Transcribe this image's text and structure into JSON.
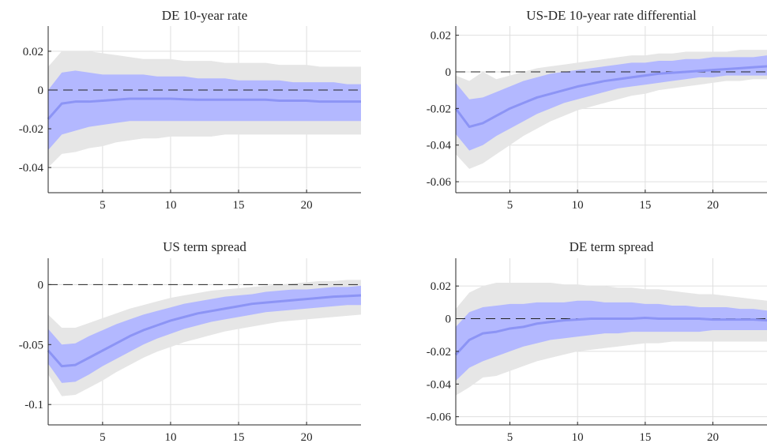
{
  "chart_data": [
    {
      "type": "area",
      "title": "DE 10-year rate",
      "xlim": [
        1,
        24
      ],
      "ylim": [
        -0.053,
        0.033
      ],
      "x_ticks": [
        5,
        10,
        15,
        20
      ],
      "x_tick_labels": [
        "5",
        "10",
        "15",
        "20"
      ],
      "y_ticks": [
        0.02,
        0,
        -0.02,
        -0.04
      ],
      "y_tick_labels": [
        "0.02",
        "0",
        "-0.02",
        "-0.04"
      ],
      "zero_line": true,
      "grid": true,
      "x": [
        1,
        2,
        3,
        4,
        5,
        6,
        7,
        8,
        9,
        10,
        11,
        12,
        13,
        14,
        15,
        16,
        17,
        18,
        19,
        20,
        21,
        22,
        23,
        24
      ],
      "series": [
        {
          "role": "outer-band",
          "color": "#e6e6e6",
          "upper": [
            0.012,
            0.02,
            0.02,
            0.02,
            0.019,
            0.018,
            0.017,
            0.016,
            0.016,
            0.016,
            0.015,
            0.015,
            0.015,
            0.014,
            0.014,
            0.014,
            0.014,
            0.013,
            0.013,
            0.013,
            0.012,
            0.012,
            0.012,
            0.012
          ],
          "lower": [
            -0.04,
            -0.033,
            -0.032,
            -0.03,
            -0.029,
            -0.027,
            -0.026,
            -0.025,
            -0.025,
            -0.024,
            -0.024,
            -0.024,
            -0.024,
            -0.023,
            -0.023,
            -0.023,
            -0.023,
            -0.023,
            -0.023,
            -0.023,
            -0.023,
            -0.023,
            -0.023,
            -0.023
          ]
        },
        {
          "role": "inner-band",
          "color": "#b3b8ff",
          "upper": [
            0.0,
            0.009,
            0.01,
            0.009,
            0.008,
            0.008,
            0.008,
            0.008,
            0.007,
            0.007,
            0.007,
            0.006,
            0.006,
            0.006,
            0.005,
            0.005,
            0.005,
            0.005,
            0.004,
            0.004,
            0.004,
            0.004,
            0.003,
            0.003
          ],
          "lower": [
            -0.031,
            -0.023,
            -0.021,
            -0.019,
            -0.018,
            -0.017,
            -0.016,
            -0.016,
            -0.016,
            -0.016,
            -0.016,
            -0.016,
            -0.016,
            -0.016,
            -0.016,
            -0.016,
            -0.016,
            -0.016,
            -0.016,
            -0.016,
            -0.016,
            -0.016,
            -0.016,
            -0.016
          ]
        },
        {
          "role": "median",
          "color": "#8c94f5",
          "values": [
            -0.015,
            -0.007,
            -0.006,
            -0.006,
            -0.0055,
            -0.005,
            -0.0045,
            -0.0045,
            -0.0045,
            -0.0045,
            -0.0048,
            -0.005,
            -0.005,
            -0.005,
            -0.005,
            -0.005,
            -0.005,
            -0.0055,
            -0.0055,
            -0.0055,
            -0.006,
            -0.006,
            -0.006,
            -0.006
          ]
        }
      ]
    },
    {
      "type": "area",
      "title": "US-DE 10-year rate differential",
      "xlim": [
        1,
        24
      ],
      "ylim": [
        -0.066,
        0.025
      ],
      "x_ticks": [
        5,
        10,
        15,
        20
      ],
      "x_tick_labels": [
        "5",
        "10",
        "15",
        "20"
      ],
      "y_ticks": [
        0.02,
        0,
        -0.02,
        -0.04,
        -0.06
      ],
      "y_tick_labels": [
        "0.02",
        "0",
        "-0.02",
        "-0.04",
        "-0.06"
      ],
      "zero_line": true,
      "grid": true,
      "x": [
        1,
        2,
        3,
        4,
        5,
        6,
        7,
        8,
        9,
        10,
        11,
        12,
        13,
        14,
        15,
        16,
        17,
        18,
        19,
        20,
        21,
        22,
        23,
        24
      ],
      "series": [
        {
          "role": "outer-band",
          "color": "#e6e6e6",
          "upper": [
            -0.002,
            -0.005,
            0.0,
            -0.004,
            -0.002,
            0.0,
            0.002,
            0.003,
            0.004,
            0.005,
            0.006,
            0.007,
            0.008,
            0.009,
            0.009,
            0.01,
            0.01,
            0.011,
            0.011,
            0.011,
            0.011,
            0.012,
            0.012,
            0.012
          ],
          "lower": [
            -0.045,
            -0.053,
            -0.05,
            -0.045,
            -0.04,
            -0.035,
            -0.031,
            -0.027,
            -0.024,
            -0.021,
            -0.019,
            -0.017,
            -0.015,
            -0.013,
            -0.012,
            -0.01,
            -0.009,
            -0.008,
            -0.007,
            -0.006,
            -0.005,
            -0.005,
            -0.004,
            -0.004
          ]
        },
        {
          "role": "inner-band",
          "color": "#b3b8ff",
          "upper": [
            -0.006,
            -0.015,
            -0.014,
            -0.011,
            -0.008,
            -0.005,
            -0.003,
            -0.001,
            0.0,
            0.001,
            0.002,
            0.003,
            0.004,
            0.005,
            0.005,
            0.006,
            0.006,
            0.007,
            0.007,
            0.008,
            0.008,
            0.008,
            0.008,
            0.009
          ],
          "lower": [
            -0.034,
            -0.043,
            -0.04,
            -0.035,
            -0.031,
            -0.027,
            -0.023,
            -0.02,
            -0.017,
            -0.015,
            -0.013,
            -0.011,
            -0.009,
            -0.008,
            -0.007,
            -0.006,
            -0.005,
            -0.004,
            -0.003,
            -0.003,
            -0.002,
            -0.002,
            -0.002,
            -0.002
          ]
        },
        {
          "role": "median",
          "color": "#8c94f5",
          "values": [
            -0.02,
            -0.03,
            -0.028,
            -0.024,
            -0.02,
            -0.017,
            -0.014,
            -0.012,
            -0.01,
            -0.008,
            -0.0065,
            -0.005,
            -0.004,
            -0.003,
            -0.002,
            -0.001,
            -0.0005,
            0.0,
            0.0005,
            0.001,
            0.0015,
            0.002,
            0.0025,
            0.003
          ]
        }
      ]
    },
    {
      "type": "area",
      "title": "US term spread",
      "xlim": [
        1,
        24
      ],
      "ylim": [
        -0.117,
        0.022
      ],
      "x_ticks": [
        5,
        10,
        15,
        20
      ],
      "x_tick_labels": [
        "5",
        "10",
        "15",
        "20"
      ],
      "y_ticks": [
        0,
        -0.05,
        -0.1
      ],
      "y_tick_labels": [
        "0",
        "-0.05",
        "-0.1"
      ],
      "zero_line": true,
      "grid": true,
      "x": [
        1,
        2,
        3,
        4,
        5,
        6,
        7,
        8,
        9,
        10,
        11,
        12,
        13,
        14,
        15,
        16,
        17,
        18,
        19,
        20,
        21,
        22,
        23,
        24
      ],
      "series": [
        {
          "role": "outer-band",
          "color": "#e6e6e6",
          "upper": [
            -0.025,
            -0.036,
            -0.036,
            -0.032,
            -0.028,
            -0.024,
            -0.02,
            -0.017,
            -0.014,
            -0.011,
            -0.009,
            -0.007,
            -0.005,
            -0.004,
            -0.003,
            -0.002,
            -0.001,
            0.0,
            0.001,
            0.002,
            0.003,
            0.003,
            0.004,
            0.004
          ],
          "lower": [
            -0.075,
            -0.093,
            -0.092,
            -0.086,
            -0.08,
            -0.073,
            -0.067,
            -0.061,
            -0.056,
            -0.052,
            -0.048,
            -0.045,
            -0.042,
            -0.039,
            -0.037,
            -0.035,
            -0.033,
            -0.031,
            -0.03,
            -0.029,
            -0.028,
            -0.027,
            -0.026,
            -0.025
          ]
        },
        {
          "role": "inner-band",
          "color": "#b3b8ff",
          "upper": [
            -0.037,
            -0.05,
            -0.049,
            -0.043,
            -0.038,
            -0.033,
            -0.029,
            -0.025,
            -0.022,
            -0.019,
            -0.016,
            -0.014,
            -0.012,
            -0.01,
            -0.009,
            -0.008,
            -0.006,
            -0.005,
            -0.004,
            -0.004,
            -0.003,
            -0.002,
            -0.002,
            -0.001
          ]
        },
        {
          "role": "inner-band-lower",
          "color": "#b3b8ff",
          "lower": [
            -0.066,
            -0.082,
            -0.081,
            -0.075,
            -0.068,
            -0.062,
            -0.056,
            -0.05,
            -0.045,
            -0.041,
            -0.037,
            -0.034,
            -0.031,
            -0.029,
            -0.027,
            -0.025,
            -0.023,
            -0.022,
            -0.021,
            -0.02,
            -0.019,
            -0.018,
            -0.017,
            -0.017
          ]
        },
        {
          "role": "median",
          "color": "#8c94f5",
          "values": [
            -0.055,
            -0.068,
            -0.067,
            -0.061,
            -0.055,
            -0.049,
            -0.043,
            -0.038,
            -0.034,
            -0.03,
            -0.027,
            -0.024,
            -0.022,
            -0.02,
            -0.018,
            -0.016,
            -0.015,
            -0.014,
            -0.013,
            -0.012,
            -0.011,
            -0.01,
            -0.0095,
            -0.009
          ]
        }
      ]
    },
    {
      "type": "area",
      "title": "DE term spread",
      "xlim": [
        1,
        24
      ],
      "ylim": [
        -0.065,
        0.037
      ],
      "x_ticks": [
        5,
        10,
        15,
        20
      ],
      "x_tick_labels": [
        "5",
        "10",
        "15",
        "20"
      ],
      "y_ticks": [
        0.02,
        0,
        -0.02,
        -0.04,
        -0.06
      ],
      "y_tick_labels": [
        "0.02",
        "0",
        "-0.02",
        "-0.04",
        "-0.06"
      ],
      "zero_line": true,
      "grid": true,
      "x": [
        1,
        2,
        3,
        4,
        5,
        6,
        7,
        8,
        9,
        10,
        11,
        12,
        13,
        14,
        15,
        16,
        17,
        18,
        19,
        20,
        21,
        22,
        23,
        24
      ],
      "series": [
        {
          "role": "outer-band",
          "color": "#e6e6e6",
          "upper": [
            0.006,
            0.016,
            0.02,
            0.022,
            0.022,
            0.022,
            0.022,
            0.022,
            0.021,
            0.021,
            0.02,
            0.02,
            0.019,
            0.019,
            0.018,
            0.018,
            0.017,
            0.016,
            0.015,
            0.015,
            0.014,
            0.013,
            0.012,
            0.011
          ]
        },
        {
          "role": "outer-band-lower",
          "color": "#e6e6e6",
          "lower": [
            -0.047,
            -0.042,
            -0.036,
            -0.035,
            -0.032,
            -0.029,
            -0.026,
            -0.024,
            -0.022,
            -0.02,
            -0.019,
            -0.018,
            -0.017,
            -0.016,
            -0.015,
            -0.015,
            -0.014,
            -0.014,
            -0.014,
            -0.014,
            -0.014,
            -0.014,
            -0.014,
            -0.014
          ]
        },
        {
          "role": "inner-band",
          "color": "#b3b8ff",
          "upper": [
            -0.005,
            0.004,
            0.007,
            0.008,
            0.009,
            0.009,
            0.01,
            0.01,
            0.01,
            0.011,
            0.011,
            0.01,
            0.01,
            0.01,
            0.009,
            0.009,
            0.008,
            0.008,
            0.007,
            0.007,
            0.007,
            0.006,
            0.006,
            0.005
          ],
          "lower": [
            -0.038,
            -0.03,
            -0.026,
            -0.023,
            -0.02,
            -0.017,
            -0.015,
            -0.013,
            -0.012,
            -0.011,
            -0.01,
            -0.009,
            -0.009,
            -0.008,
            -0.008,
            -0.008,
            -0.008,
            -0.008,
            -0.008,
            -0.007,
            -0.007,
            -0.007,
            -0.007,
            -0.007
          ]
        },
        {
          "role": "median",
          "color": "#8c94f5",
          "values": [
            -0.022,
            -0.013,
            -0.009,
            -0.008,
            -0.006,
            -0.005,
            -0.003,
            -0.002,
            -0.001,
            -0.0005,
            0.0,
            0.0,
            0.0,
            0.0,
            0.0005,
            0.0,
            0.0,
            0.0,
            0.0,
            -0.0005,
            -0.0005,
            -0.0005,
            -0.0005,
            -0.001
          ]
        }
      ]
    }
  ]
}
